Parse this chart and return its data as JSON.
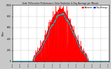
{
  "title": "Solar PV/Inverter Performance Solar Radiation & Day Average per Minute",
  "ylabel_left": "W/m²",
  "background_color": "#c8c8c8",
  "plot_bg_color": "#ffffff",
  "grid_color": "#aaaaaa",
  "bar_color": "#ff0000",
  "line_color": "#0000cc",
  "avg_line_color": "#00cccc",
  "legend_entries": [
    "Radiation",
    "Day Average"
  ],
  "legend_colors": [
    "#ff0000",
    "#0000cc"
  ],
  "xlim": [
    0,
    1440
  ],
  "ylim": [
    0,
    1000
  ],
  "yticks": [
    0,
    200,
    400,
    600,
    800,
    1000
  ],
  "num_points": 1440
}
